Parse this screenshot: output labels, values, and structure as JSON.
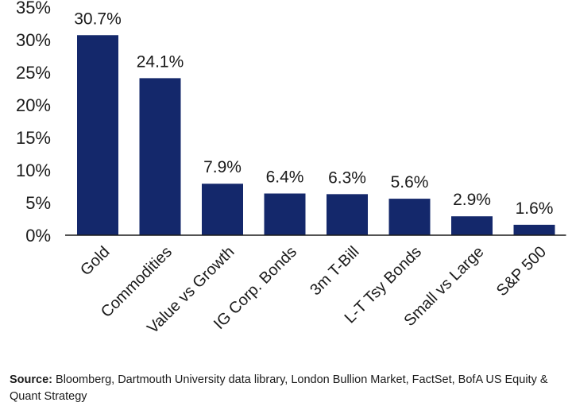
{
  "chart_data": {
    "type": "bar",
    "categories": [
      "Gold",
      "Commodities",
      "Value vs Growth",
      "IG Corp. Bonds",
      "3m T-Bill",
      "L-T Tsy Bonds",
      "Small vs Large",
      "S&P 500"
    ],
    "values": [
      30.7,
      24.1,
      7.9,
      6.4,
      6.3,
      5.6,
      2.9,
      1.6
    ],
    "value_labels": [
      "30.7%",
      "24.1%",
      "7.9%",
      "6.4%",
      "6.3%",
      "5.6%",
      "2.9%",
      "1.6%"
    ],
    "y_ticks": [
      0,
      5,
      10,
      15,
      20,
      25,
      30,
      35
    ],
    "y_tick_labels": [
      "0%",
      "5%",
      "10%",
      "15%",
      "20%",
      "25%",
      "30%",
      "35%"
    ],
    "ylim": [
      0,
      35
    ],
    "title": "",
    "xlabel": "",
    "ylabel": "",
    "grid": false,
    "legend": "none",
    "bar_color": "#14286b",
    "axis_color": "#1a1a1a"
  },
  "source": {
    "label": "Source:",
    "text": " Bloomberg, Dartmouth University data library, London Bullion Market, FactSet, BofA US Equity & Quant Strategy"
  }
}
